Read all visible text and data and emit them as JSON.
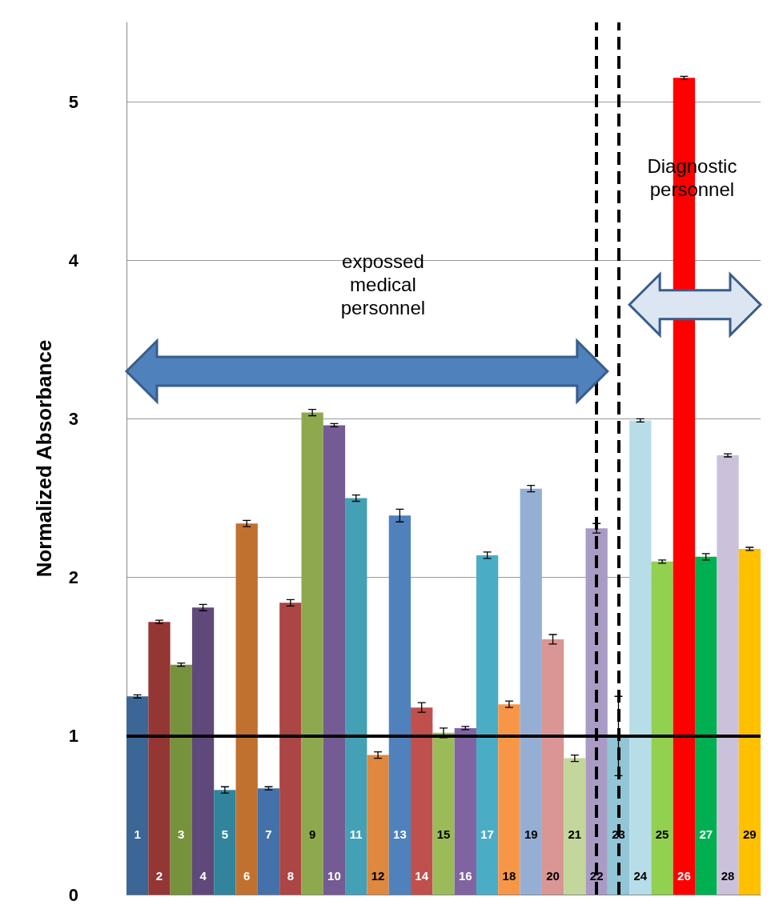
{
  "chart_data": {
    "type": "bar",
    "ylabel": "Normalized Absorbance",
    "categories": [
      "1",
      "2",
      "3",
      "4",
      "5",
      "6",
      "7",
      "8",
      "9",
      "10",
      "11",
      "12",
      "13",
      "14",
      "15",
      "16",
      "17",
      "18",
      "19",
      "20",
      "21",
      "22",
      "23",
      "24",
      "25",
      "26",
      "27",
      "28",
      "29"
    ],
    "values": [
      1.25,
      1.72,
      1.45,
      1.81,
      0.66,
      2.34,
      0.67,
      1.84,
      3.04,
      2.96,
      2.5,
      0.88,
      2.39,
      1.18,
      1.02,
      1.05,
      2.14,
      1.2,
      2.56,
      1.61,
      0.86,
      2.31,
      1.0,
      2.99,
      2.1,
      5.15,
      2.13,
      2.77,
      2.18
    ],
    "errors": [
      0.01,
      0.01,
      0.01,
      0.02,
      0.02,
      0.02,
      0.01,
      0.02,
      0.02,
      0.01,
      0.02,
      0.02,
      0.04,
      0.03,
      0.03,
      0.01,
      0.02,
      0.02,
      0.02,
      0.03,
      0.02,
      0.03,
      0.25,
      0.01,
      0.01,
      0.01,
      0.02,
      0.01,
      0.01
    ],
    "colors": [
      "#3b6696",
      "#943634",
      "#77923c",
      "#5f497a",
      "#31849b",
      "#c0712f",
      "#4471aa",
      "#ab4644",
      "#8ea94d",
      "#745b94",
      "#43a0b5",
      "#de8840",
      "#4f81bd",
      "#c0504d",
      "#9bbb59",
      "#8064a2",
      "#4bacc6",
      "#f79646",
      "#95aed4",
      "#d99694",
      "#c3d69b",
      "#a99bc3",
      "#92c5d6",
      "#b7dde8",
      "#92d050",
      "#ff0000",
      "#00b050",
      "#ccc1da",
      "#ffc000"
    ],
    "ylim": [
      0,
      5.5
    ],
    "yticks": [
      0,
      1,
      2,
      3,
      4,
      5
    ],
    "grid": "y",
    "ref_lines": [
      {
        "axis": "y",
        "value": 1,
        "color": "#000000",
        "line_style": "solid"
      },
      {
        "axis": "x",
        "value": "22",
        "color": "#000000",
        "line_style": "dashed"
      },
      {
        "axis": "x",
        "value": "23",
        "color": "#000000",
        "line_style": "dashed"
      }
    ],
    "annotations": [
      "expossed\nmedical\npersonnel",
      "Diagnostic\npersonnel"
    ]
  }
}
